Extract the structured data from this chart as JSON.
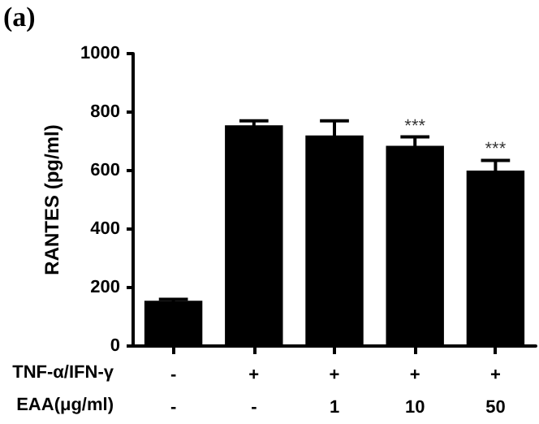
{
  "chart_data": {
    "type": "bar",
    "title": "(a)",
    "ylabel": "RANTES (pg/ml)",
    "categories": [
      "-\n-",
      "+\n-",
      "+\n1",
      "+\n10",
      "+\n50"
    ],
    "values": [
      155,
      755,
      720,
      685,
      600
    ],
    "errors": [
      5,
      15,
      50,
      30,
      35
    ],
    "color": "#000000",
    "ylim": [
      0,
      1000
    ],
    "yticks": [
      0,
      200,
      400,
      600,
      800,
      1000
    ],
    "grid": false,
    "annotations": [
      "TNF-α/IFN-γ",
      "EAA(μg/ml)",
      {
        "text": "***",
        "x": "+\n10",
        "y": 715
      },
      {
        "text": "***",
        "x": "+\n50",
        "y": 635
      }
    ]
  }
}
